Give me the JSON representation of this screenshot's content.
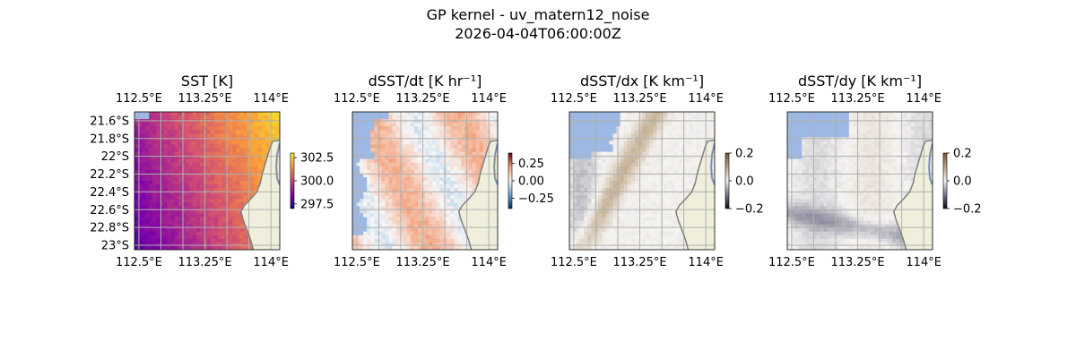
{
  "figure": {
    "title_line1": "GP kernel - uv_matern12_noise",
    "title_line2": "2026-04-04T06:00:00Z"
  },
  "colors": {
    "ocean_mask": "#9db9e3",
    "land": "#efefdb",
    "coast": "#808080",
    "grid": "#b0b0b0"
  },
  "chart_data": [
    {
      "type": "heatmap",
      "title": "SST [K]",
      "lon_range": [
        112.45,
        114.1
      ],
      "lat_range": [
        -23.05,
        -21.5
      ],
      "x_ticks": [
        {
          "value": 112.5,
          "label": "112.5°E"
        },
        {
          "value": 113.25,
          "label": "113.25°E"
        },
        {
          "value": 114.0,
          "label": "114°E"
        }
      ],
      "y_ticks": [
        {
          "value": -21.6,
          "label": "21.6°S"
        },
        {
          "value": -21.8,
          "label": "21.8°S"
        },
        {
          "value": -22.0,
          "label": "22°S"
        },
        {
          "value": -22.2,
          "label": "22.2°S"
        },
        {
          "value": -22.4,
          "label": "22.4°S"
        },
        {
          "value": -22.6,
          "label": "22.6°S"
        },
        {
          "value": -22.8,
          "label": "22.8°S"
        },
        {
          "value": -23.0,
          "label": "23°S"
        }
      ],
      "show_y_labels": true,
      "grid": true,
      "colormap": "plasma",
      "colorbar": {
        "range": [
          297.0,
          303.0
        ],
        "ticks": [
          {
            "value": 302.5,
            "label": "302.5"
          },
          {
            "value": 300.0,
            "label": "300.0"
          },
          {
            "value": 297.5,
            "label": "297.5"
          }
        ]
      },
      "field": "sst"
    },
    {
      "type": "heatmap",
      "title": "dSST/dt [K hr⁻¹]",
      "lon_range": [
        112.45,
        114.1
      ],
      "lat_range": [
        -23.05,
        -21.5
      ],
      "x_ticks": [
        {
          "value": 112.5,
          "label": "112.5°E"
        },
        {
          "value": 113.25,
          "label": "113.25°E"
        },
        {
          "value": 114.0,
          "label": "114°E"
        }
      ],
      "y_ticks": [],
      "show_y_labels": false,
      "grid": true,
      "colormap": "redblue",
      "colorbar": {
        "range": [
          -0.4,
          0.4
        ],
        "ticks": [
          {
            "value": 0.25,
            "label": "0.25"
          },
          {
            "value": 0.0,
            "label": "0.00"
          },
          {
            "value": -0.25,
            "label": "−0.25"
          }
        ]
      },
      "field": "dt"
    },
    {
      "type": "heatmap",
      "title": "dSST/dx [K km⁻¹]",
      "lon_range": [
        112.45,
        114.1
      ],
      "lat_range": [
        -23.05,
        -21.5
      ],
      "x_ticks": [
        {
          "value": 112.5,
          "label": "112.5°E"
        },
        {
          "value": 113.25,
          "label": "113.25°E"
        },
        {
          "value": 114.0,
          "label": "114°E"
        }
      ],
      "y_ticks": [],
      "show_y_labels": false,
      "grid": true,
      "colormap": "brownwhite",
      "colorbar": {
        "range": [
          -0.2,
          0.2
        ],
        "ticks": [
          {
            "value": 0.2,
            "label": "0.2"
          },
          {
            "value": 0.0,
            "label": "0.0"
          },
          {
            "value": -0.2,
            "label": "−0.2"
          }
        ]
      },
      "field": "dx"
    },
    {
      "type": "heatmap",
      "title": "dSST/dy [K km⁻¹]",
      "lon_range": [
        112.45,
        114.1
      ],
      "lat_range": [
        -23.05,
        -21.5
      ],
      "x_ticks": [
        {
          "value": 112.5,
          "label": "112.5°E"
        },
        {
          "value": 113.25,
          "label": "113.25°E"
        },
        {
          "value": 114.0,
          "label": "114°E"
        }
      ],
      "y_ticks": [],
      "show_y_labels": false,
      "grid": true,
      "colormap": "brownwhite",
      "colorbar": {
        "range": [
          -0.2,
          0.2
        ],
        "ticks": [
          {
            "value": 0.2,
            "label": "0.2"
          },
          {
            "value": 0.0,
            "label": "0.0"
          },
          {
            "value": -0.2,
            "label": "−0.2"
          }
        ]
      },
      "field": "dy"
    }
  ]
}
